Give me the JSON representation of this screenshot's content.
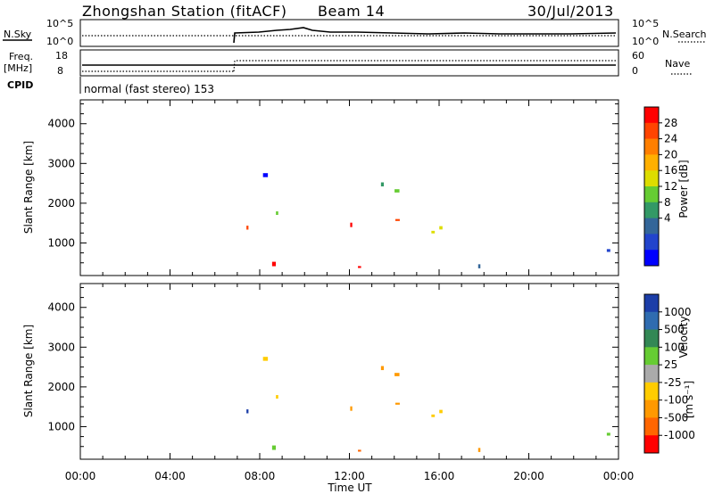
{
  "header": {
    "station": "Zhongshan Station (fitACF)",
    "beam": "Beam 14",
    "date": "30/Jul/2013"
  },
  "status_panels": {
    "nsky_label": "N.Sky",
    "nsky_ticks": [
      "10^5",
      "10^0"
    ],
    "nsearch_label": "N.Search",
    "nsearch_ticks": [
      "10^5",
      "10^0"
    ],
    "freq_label": "Freq.",
    "freq_unit": "[MHz]",
    "freq_ticks": [
      "18",
      "8"
    ],
    "nave_label": "Nave",
    "nave_ticks": [
      "60",
      "0"
    ],
    "cpid_label": "CPID",
    "cpid_text": "normal (fast stereo) 153"
  },
  "chart_data": [
    {
      "type": "heatmap",
      "panel": "power",
      "ylabel": "Slant Range [km]",
      "yticks": [
        1000,
        2000,
        3000,
        4000
      ],
      "ylim": [
        180,
        4600
      ],
      "xlim_hours": [
        0,
        24
      ],
      "colorbar_label": "Power [dB]",
      "colorbar_ticks": [
        "28",
        "24",
        "20",
        "16",
        "12",
        "8",
        "4"
      ],
      "colorbar_colors": [
        "#ff0000",
        "#ff4400",
        "#ff7f00",
        "#ffb000",
        "#dddd00",
        "#66cc33",
        "#339966",
        "#336699",
        "#2244cc",
        "#0000ff"
      ]
    },
    {
      "type": "heatmap",
      "panel": "velocity",
      "ylabel": "Slant Range [km]",
      "yticks": [
        1000,
        2000,
        3000,
        4000
      ],
      "ylim": [
        180,
        4600
      ],
      "xlim_hours": [
        0,
        24
      ],
      "xlabel": "Time UT",
      "xticks": [
        "00:00",
        "04:00",
        "08:00",
        "12:00",
        "16:00",
        "20:00",
        "00:00"
      ],
      "colorbar_label": "Velocity",
      "colorbar_unit": "[m s⁻¹]",
      "colorbar_ticks": [
        "1000",
        "500",
        "100",
        "25",
        "-25",
        "-100",
        "-500",
        "-1000"
      ],
      "colorbar_colors": [
        "#1c3ea8",
        "#2f6cb0",
        "#338855",
        "#66cc33",
        "#aaaaaa",
        "#ffcc00",
        "#ff9900",
        "#ff6600",
        "#ff0000"
      ]
    }
  ]
}
